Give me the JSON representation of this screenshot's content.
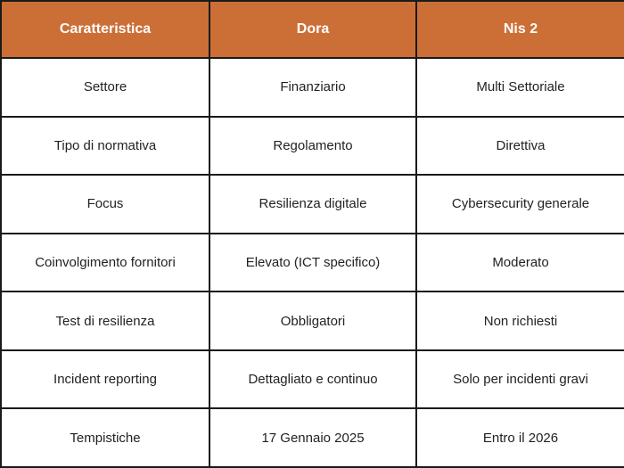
{
  "table": {
    "header": [
      "Caratteristica",
      "Dora",
      "Nis 2"
    ],
    "rows": [
      [
        "Settore",
        "Finanziario",
        "Multi Settoriale"
      ],
      [
        "Tipo di normativa",
        "Regolamento",
        "Direttiva"
      ],
      [
        "Focus",
        "Resilienza digitale",
        "Cybersecurity generale"
      ],
      [
        "Coinvolgimento fornitori",
        "Elevato (ICT specifico)",
        "Moderato"
      ],
      [
        "Test di resilienza",
        "Obbligatori",
        "Non richiesti"
      ],
      [
        "Incident reporting",
        "Dettagliato e continuo",
        "Solo per incidenti gravi"
      ],
      [
        "Tempistiche",
        "17 Gennaio 2025",
        "Entro il 2026"
      ]
    ]
  }
}
